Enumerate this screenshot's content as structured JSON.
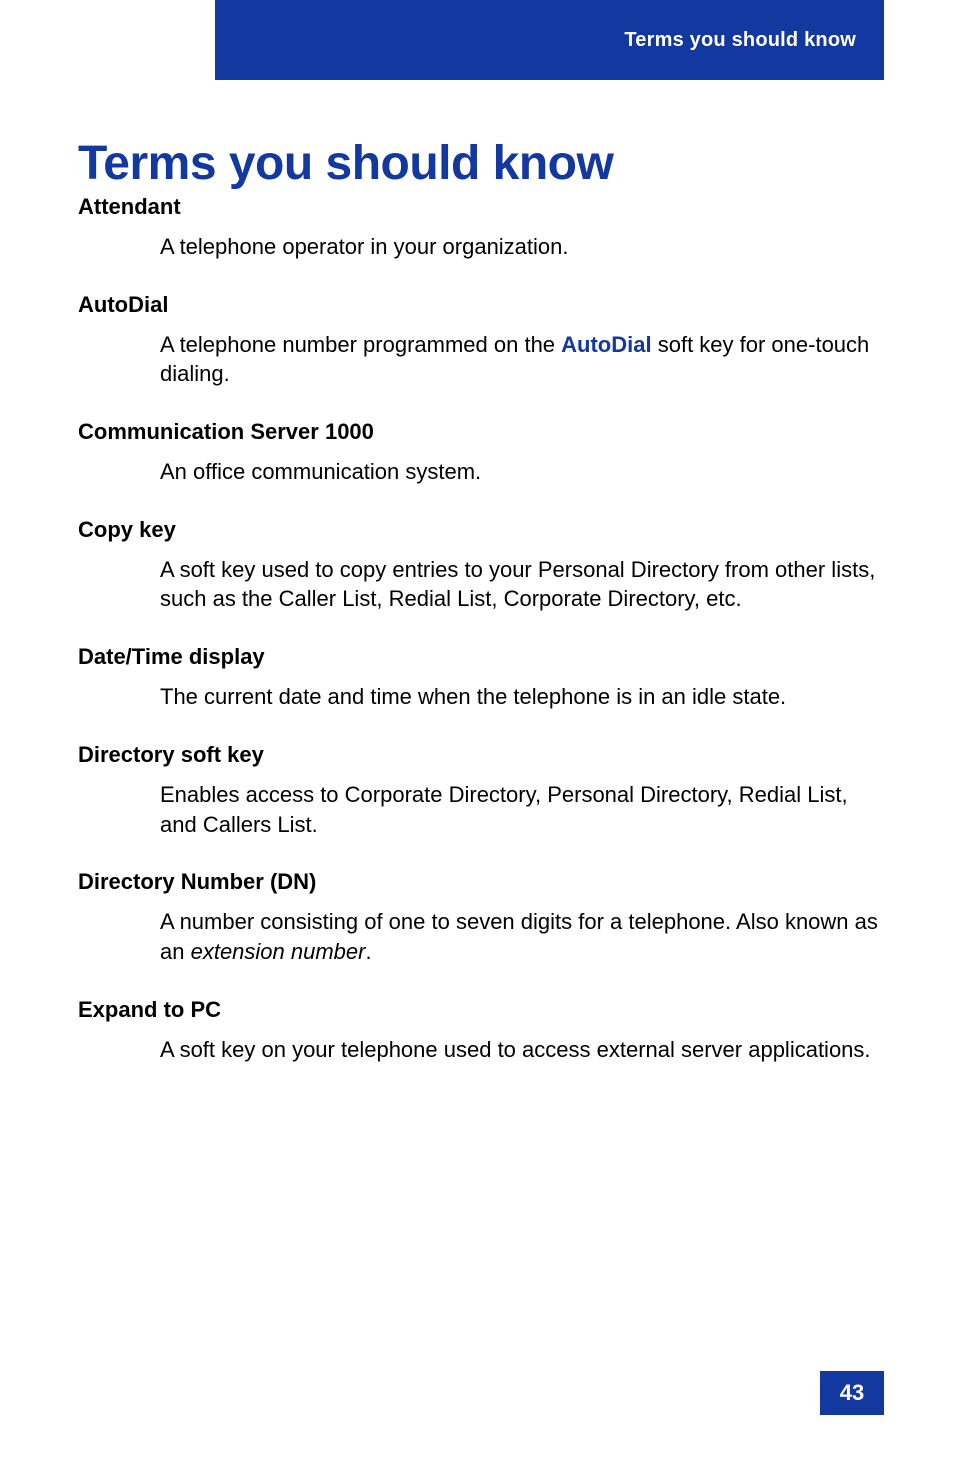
{
  "header": {
    "tab_label": "Terms you should know"
  },
  "title": "Terms you should know",
  "terms": [
    {
      "name": "Attendant",
      "def_before": "A telephone operator in your organization.",
      "softkey": "",
      "def_after": ""
    },
    {
      "name": "AutoDial",
      "def_before": "A telephone number programmed on the ",
      "softkey": "AutoDial",
      "def_after": " soft key for one-touch dialing."
    },
    {
      "name": "Communication Server 1000",
      "def_before": "An office communication system.",
      "softkey": "",
      "def_after": ""
    },
    {
      "name": "Copy key",
      "def_before": "A soft key used to copy entries to your Personal Directory from other lists, such as the Caller List, Redial List, Corporate Directory, etc.",
      "softkey": "",
      "def_after": ""
    },
    {
      "name": "Date/Time display",
      "def_before": "The current date and time when the telephone is in an idle state.",
      "softkey": "",
      "def_after": ""
    },
    {
      "name": "Directory soft key",
      "def_before": "Enables access to Corporate Directory, Personal Directory, Redial List, and Callers List.",
      "softkey": "",
      "def_after": ""
    },
    {
      "name": "Directory Number (DN)",
      "def_before": "A number consisting of one to seven digits for a telephone. Also known as an ",
      "italic": "extension number",
      "def_after": "."
    },
    {
      "name": "Expand to PC",
      "def_before": "A soft key on your telephone used to access external server applications.",
      "softkey": "",
      "def_after": ""
    }
  ],
  "page_number": "43",
  "colors": {
    "brand_blue": "#1338a0",
    "white": "#ffffff",
    "black": "#000000"
  }
}
